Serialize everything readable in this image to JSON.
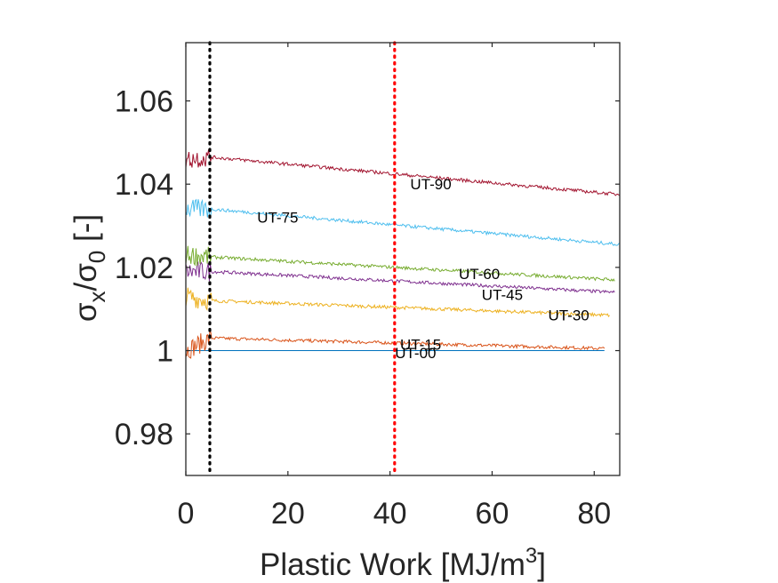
{
  "chart_data": {
    "type": "line",
    "xlabel": "Plastic Work [MJ/m",
    "xlabel_sup": "3",
    "xlabel_end": "]",
    "ylabel_parts": [
      "σ",
      "x",
      "/σ",
      "0",
      " [-]"
    ],
    "xlim": [
      0,
      85
    ],
    "ylim": [
      0.97,
      1.074
    ],
    "xticks": [
      0,
      20,
      40,
      60,
      80
    ],
    "xtick_labels": [
      "0",
      "20",
      "40",
      "60",
      "80"
    ],
    "yticks": [
      0.98,
      1.0,
      1.02,
      1.04,
      1.06
    ],
    "ytick_labels": [
      "0.98",
      "1",
      "1.02",
      "1.04",
      "1.06"
    ],
    "grid": false,
    "vlines": [
      {
        "x": 4.7,
        "color": "#000000",
        "style": "dotted"
      },
      {
        "x": 40.9,
        "color": "#ff0000",
        "style": "dotted"
      }
    ],
    "series": [
      {
        "name": "UT-00",
        "color": "#0072bd",
        "x_end": 82,
        "start": 1.0,
        "at5": 1.0,
        "end": 1.0,
        "noise": 0.0,
        "label_x": 45,
        "label_y": 0.9995
      },
      {
        "name": "UT-15",
        "color": "#d95319",
        "x_end": 82,
        "start": 1.0,
        "at5": 1.003,
        "end": 1.0005,
        "noise": 0.0004,
        "label_x": 46,
        "label_y": 1.0015
      },
      {
        "name": "UT-30",
        "color": "#edb120",
        "x_end": 83,
        "start": 1.013,
        "at5": 1.012,
        "end": 1.0085,
        "noise": 0.0004,
        "label_x": 75,
        "label_y": 1.0085
      },
      {
        "name": "UT-45",
        "color": "#7e2f8e",
        "x_end": 84,
        "start": 1.019,
        "at5": 1.019,
        "end": 1.014,
        "noise": 0.0004,
        "label_x": 62,
        "label_y": 1.0135
      },
      {
        "name": "UT-60",
        "color": "#77ac30",
        "x_end": 84,
        "start": 1.023,
        "at5": 1.0225,
        "end": 1.017,
        "noise": 0.0004,
        "label_x": 57.5,
        "label_y": 1.0185
      },
      {
        "name": "UT-75",
        "color": "#4dbeee",
        "x_end": 85,
        "start": 1.034,
        "at5": 1.034,
        "end": 1.0255,
        "noise": 0.0004,
        "label_x": 18,
        "label_y": 1.032
      },
      {
        "name": "UT-90",
        "color": "#a2142f",
        "x_end": 85,
        "start": 1.046,
        "at5": 1.0465,
        "end": 1.0375,
        "noise": 0.0004,
        "label_x": 48,
        "label_y": 1.04
      }
    ]
  }
}
